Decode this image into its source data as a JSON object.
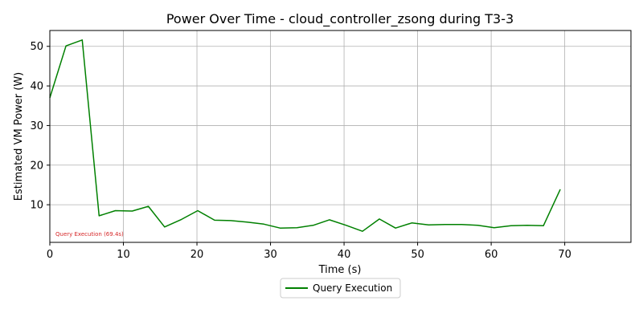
{
  "chart_data": {
    "type": "line",
    "title": "Power Over Time - cloud_controller_zsong during T3-3",
    "xlabel": "Time (s)",
    "ylabel": "Estimated VM Power (W)",
    "xlim": [
      0,
      79
    ],
    "ylim": [
      0.5,
      54
    ],
    "xticks": [
      0,
      10,
      20,
      30,
      40,
      50,
      60,
      70
    ],
    "yticks": [
      10,
      20,
      30,
      40,
      50
    ],
    "grid": true,
    "legend": {
      "placement": "bottom-center",
      "entries": [
        "Query Execution"
      ]
    },
    "annotation": {
      "text": "Query Execution (69.4s)",
      "color": "#d62728"
    },
    "series": [
      {
        "name": "Query Execution",
        "color": "#008000",
        "x": [
          0,
          2.2,
          4.4,
          6.7,
          8.9,
          11.2,
          13.4,
          15.6,
          17.9,
          20.1,
          22.4,
          24.6,
          26.8,
          29.1,
          31.3,
          33.6,
          35.8,
          38.0,
          40.3,
          42.5,
          44.8,
          47.0,
          49.2,
          51.5,
          53.7,
          56.0,
          58.2,
          60.4,
          62.7,
          64.9,
          67.1,
          69.4
        ],
        "y": [
          37,
          50.1,
          51.6,
          7.2,
          8.5,
          8.4,
          9.6,
          4.4,
          6.3,
          8.5,
          6.1,
          6.0,
          5.6,
          5.1,
          4.1,
          4.2,
          4.8,
          6.2,
          4.8,
          3.3,
          6.4,
          4.1,
          5.4,
          4.9,
          5.0,
          5.0,
          4.8,
          4.2,
          4.7,
          4.8,
          4.7,
          13.9
        ]
      }
    ]
  }
}
